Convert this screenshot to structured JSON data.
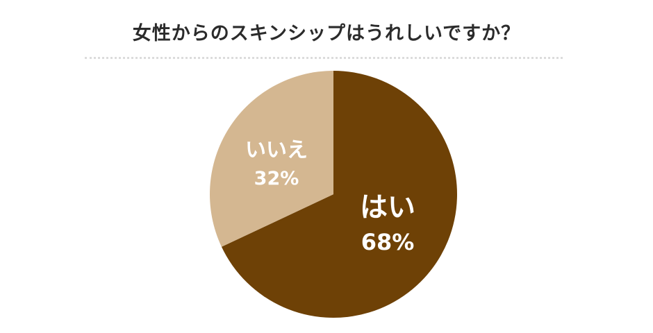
{
  "title": "女性からのスキンシップはうれしいですか？",
  "chart_data": {
    "type": "pie",
    "title": "女性からのスキンシップはうれしいですか？",
    "slices": [
      {
        "label": "はい",
        "value": 68,
        "value_text": "68%",
        "color": "#6e4106"
      },
      {
        "label": "いいえ",
        "value": 32,
        "value_text": "32%",
        "color": "#d4b791"
      }
    ],
    "start": "12 o'clock",
    "direction": "clockwise"
  }
}
